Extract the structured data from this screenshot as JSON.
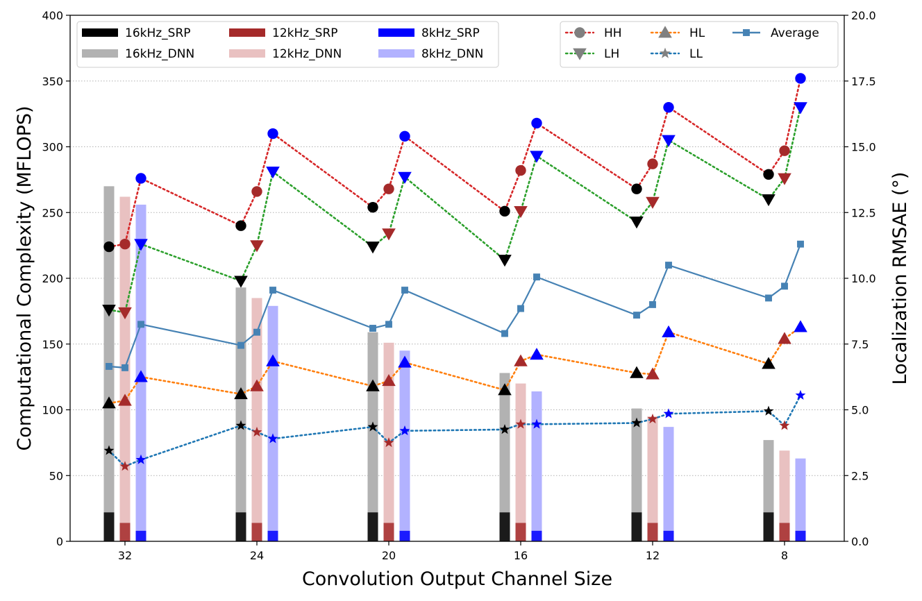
{
  "chart_data": {
    "type": "bar+line",
    "xlabel": "Convolution Output Channel Size",
    "ylabel_left": "Computational Complexity (MFLOPS)",
    "ylabel_right": "Localization RMSAE (°)",
    "ylim_left": [
      0,
      400
    ],
    "ylim_right": [
      0,
      20
    ],
    "yticks_left": [
      "0",
      "50",
      "100",
      "150",
      "200",
      "250",
      "300",
      "350",
      "400"
    ],
    "yticks_right": [
      "0.0",
      "2.5",
      "5.0",
      "7.5",
      "10.0",
      "12.5",
      "15.0",
      "17.5",
      "20.0"
    ],
    "categories": [
      "32",
      "24",
      "20",
      "16",
      "12",
      "8"
    ],
    "grid": "horizontal dotted",
    "bar_series": [
      {
        "name": "16kHz_SRP",
        "values": [
          22,
          22,
          22,
          22,
          22,
          22
        ],
        "color": "#000000",
        "offset": -1
      },
      {
        "name": "16kHz_DNN",
        "values": [
          270,
          193,
          159,
          128,
          101,
          77
        ],
        "color": "#b2b2b2",
        "offset": -1
      },
      {
        "name": "12kHz_SRP",
        "values": [
          14,
          14,
          14,
          14,
          14,
          14
        ],
        "color": "#a52a2a",
        "offset": 0
      },
      {
        "name": "12kHz_DNN",
        "values": [
          262,
          185,
          151,
          120,
          95,
          69
        ],
        "color": "#e9c1c1",
        "offset": 0
      },
      {
        "name": "8kHz_SRP",
        "values": [
          8,
          8,
          8,
          8,
          8,
          8
        ],
        "color": "#0000ff",
        "offset": 1
      },
      {
        "name": "8kHz_DNN",
        "values": [
          256,
          179,
          145,
          114,
          87,
          63
        ],
        "color": "#b2b2ff",
        "offset": 1
      }
    ],
    "line_series": [
      {
        "name": "HH",
        "marker": "circle",
        "style": "dotted",
        "color": "#d62728",
        "values": [
          [
            11.2,
            11.3,
            13.8
          ],
          [
            12.0,
            13.3,
            15.5
          ],
          [
            12.7,
            13.4,
            15.4
          ],
          [
            12.55,
            14.1,
            15.9
          ],
          [
            13.4,
            14.35,
            16.5
          ],
          [
            13.95,
            14.85,
            17.6
          ]
        ]
      },
      {
        "name": "LH",
        "marker": "triangle-down",
        "style": "dotted",
        "color": "#2ca02c",
        "values": [
          [
            8.8,
            8.7,
            11.3
          ],
          [
            9.9,
            11.25,
            14.05
          ],
          [
            11.2,
            11.7,
            13.85
          ],
          [
            10.7,
            12.55,
            14.65
          ],
          [
            12.15,
            12.9,
            15.25
          ],
          [
            13.0,
            13.8,
            16.5
          ]
        ]
      },
      {
        "name": "HL",
        "marker": "triangle-up",
        "style": "dotted",
        "color": "#ff7f0e",
        "values": [
          [
            5.25,
            5.35,
            6.25
          ],
          [
            5.6,
            5.9,
            6.85
          ],
          [
            5.9,
            6.1,
            6.8
          ],
          [
            5.75,
            6.85,
            7.1
          ],
          [
            6.4,
            6.35,
            7.95
          ],
          [
            6.75,
            7.7,
            8.15
          ]
        ]
      },
      {
        "name": "LL",
        "marker": "star",
        "style": "dotted",
        "color": "#1f77b4",
        "values": [
          [
            3.45,
            2.85,
            3.1
          ],
          [
            4.4,
            4.15,
            3.9
          ],
          [
            4.35,
            3.75,
            4.2
          ],
          [
            4.25,
            4.45,
            4.45
          ],
          [
            4.5,
            4.65,
            4.85
          ],
          [
            4.95,
            4.4,
            5.55
          ]
        ]
      },
      {
        "name": "Average",
        "marker": "square",
        "style": "solid",
        "color": "#4682b4",
        "values": [
          [
            6.65,
            6.6,
            8.25
          ],
          [
            7.45,
            7.95,
            9.55
          ],
          [
            8.1,
            8.25,
            9.55
          ],
          [
            7.9,
            8.85,
            10.05
          ],
          [
            8.6,
            9.0,
            10.5
          ],
          [
            9.25,
            9.7,
            11.3
          ]
        ]
      }
    ],
    "legend": {
      "bars_position": "top-left",
      "lines_position": "top-right",
      "bars": [
        {
          "label": "16kHz_SRP",
          "color": "#000000"
        },
        {
          "label": "16kHz_DNN",
          "color": "#b2b2b2"
        },
        {
          "label": "12kHz_SRP",
          "color": "#a52a2a"
        },
        {
          "label": "12kHz_DNN",
          "color": "#e9c1c1"
        },
        {
          "label": "8kHz_SRP",
          "color": "#0000ff"
        },
        {
          "label": "8kHz_DNN",
          "color": "#b2b2ff"
        }
      ],
      "lines": [
        {
          "label": "HH",
          "marker": "circle",
          "color": "#d62728",
          "mcolor": "#808080",
          "style": "dotted"
        },
        {
          "label": "LH",
          "marker": "triangle-down",
          "color": "#2ca02c",
          "mcolor": "#808080",
          "style": "dotted"
        },
        {
          "label": "HL",
          "marker": "triangle-up",
          "color": "#ff7f0e",
          "mcolor": "#808080",
          "style": "dotted"
        },
        {
          "label": "LL",
          "marker": "star",
          "color": "#1f77b4",
          "mcolor": "#808080",
          "style": "dotted"
        },
        {
          "label": "Average",
          "marker": "square",
          "color": "#4682b4",
          "mcolor": "#4682b4",
          "style": "solid"
        }
      ]
    },
    "marker_colors_by_frequency": [
      "#000000",
      "#a52a2a",
      "#0000ff"
    ]
  }
}
